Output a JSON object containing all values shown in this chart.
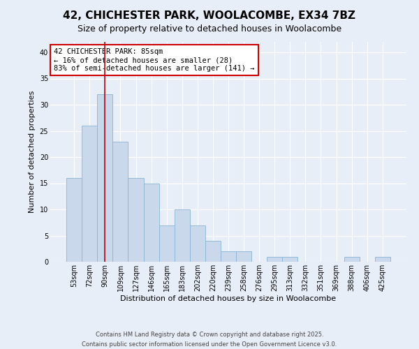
{
  "title1": "42, CHICHESTER PARK, WOOLACOMBE, EX34 7BZ",
  "title2": "Size of property relative to detached houses in Woolacombe",
  "xlabel": "Distribution of detached houses by size in Woolacombe",
  "ylabel": "Number of detached properties",
  "categories": [
    "53sqm",
    "72sqm",
    "90sqm",
    "109sqm",
    "127sqm",
    "146sqm",
    "165sqm",
    "183sqm",
    "202sqm",
    "220sqm",
    "239sqm",
    "258sqm",
    "276sqm",
    "295sqm",
    "313sqm",
    "332sqm",
    "351sqm",
    "369sqm",
    "388sqm",
    "406sqm",
    "425sqm"
  ],
  "values": [
    16,
    26,
    32,
    23,
    16,
    15,
    7,
    10,
    7,
    4,
    2,
    2,
    0,
    1,
    1,
    0,
    0,
    0,
    1,
    0,
    1
  ],
  "bar_color": "#c9d9eb",
  "bar_edge_color": "#8ab4d4",
  "vline_x": 2,
  "vline_color": "#bb0000",
  "annotation_text": "42 CHICHESTER PARK: 85sqm\n← 16% of detached houses are smaller (28)\n83% of semi-detached houses are larger (141) →",
  "annotation_box_facecolor": "#ffffff",
  "annotation_box_edgecolor": "#cc0000",
  "ylim": [
    0,
    42
  ],
  "yticks": [
    0,
    5,
    10,
    15,
    20,
    25,
    30,
    35,
    40
  ],
  "footer1": "Contains HM Land Registry data © Crown copyright and database right 2025.",
  "footer2": "Contains public sector information licensed under the Open Government Licence v3.0.",
  "background_color": "#e8eef7",
  "plot_background_color": "#e8eef7",
  "grid_color": "#ffffff",
  "title1_fontsize": 11,
  "title2_fontsize": 9,
  "axis_label_fontsize": 8,
  "tick_fontsize": 7,
  "footer_fontsize": 6,
  "annotation_fontsize": 7.5
}
